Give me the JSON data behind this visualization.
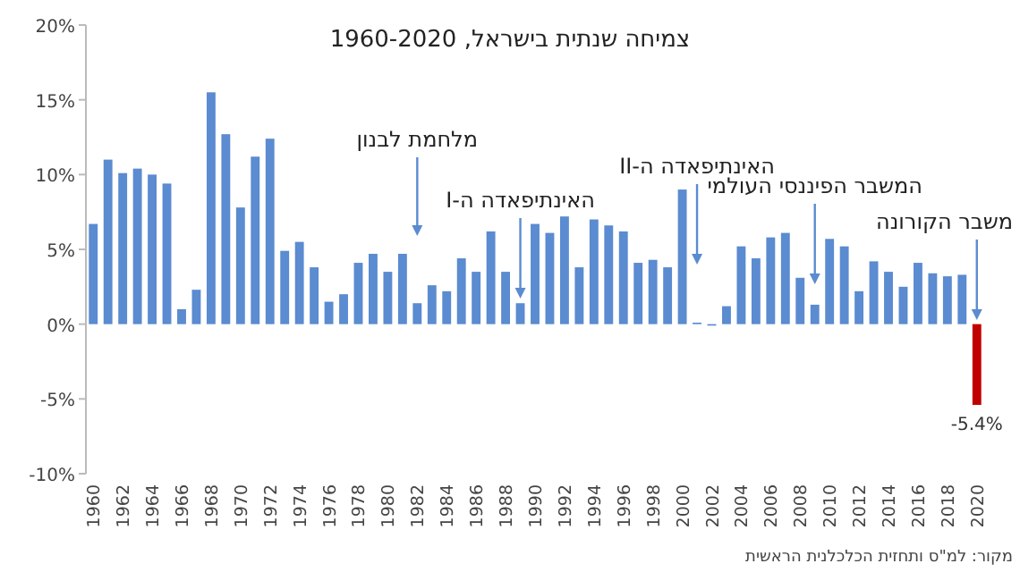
{
  "chart_data": {
    "type": "bar",
    "title": "צמיחה שנתית בישראל, 1960-2020",
    "categories": [
      "1960",
      null,
      "1962",
      null,
      "1964",
      null,
      "1966",
      null,
      "1968",
      null,
      "1970",
      null,
      "1972",
      null,
      "1974",
      null,
      "1976",
      null,
      "1978",
      null,
      "1980",
      null,
      "1982",
      null,
      "1984",
      null,
      "1986",
      null,
      "1988",
      null,
      "1990",
      null,
      "1992",
      null,
      "1994",
      null,
      "1996",
      null,
      "1998",
      null,
      "2000",
      null,
      "2002",
      null,
      "2004",
      null,
      "2006",
      null,
      "2008",
      null,
      "2010",
      null,
      "2012",
      null,
      "2014",
      null,
      "2016",
      null,
      "2018",
      null,
      "2020"
    ],
    "values": [
      6.7,
      11.0,
      10.1,
      10.4,
      10.0,
      9.4,
      1.0,
      2.3,
      15.5,
      12.7,
      7.8,
      11.2,
      12.4,
      4.9,
      5.5,
      3.8,
      1.5,
      2.0,
      4.1,
      4.7,
      3.5,
      4.7,
      1.4,
      2.6,
      2.2,
      4.4,
      3.5,
      6.2,
      3.5,
      1.4,
      6.7,
      6.1,
      7.2,
      3.8,
      7.0,
      6.6,
      6.2,
      4.1,
      4.3,
      3.8,
      9.0,
      0.1,
      -0.1,
      1.2,
      5.2,
      4.4,
      5.8,
      6.1,
      3.1,
      1.3,
      5.7,
      5.2,
      2.2,
      4.2,
      3.5,
      2.5,
      4.1,
      3.4,
      3.2,
      3.3,
      -5.4
    ],
    "colors": [
      "#5b8bd0",
      "#5b8bd0",
      "#5b8bd0",
      "#5b8bd0",
      "#5b8bd0",
      "#5b8bd0",
      "#5b8bd0",
      "#5b8bd0",
      "#5b8bd0",
      "#5b8bd0",
      "#5b8bd0",
      "#5b8bd0",
      "#5b8bd0",
      "#5b8bd0",
      "#5b8bd0",
      "#5b8bd0",
      "#5b8bd0",
      "#5b8bd0",
      "#5b8bd0",
      "#5b8bd0",
      "#5b8bd0",
      "#5b8bd0",
      "#5b8bd0",
      "#5b8bd0",
      "#5b8bd0",
      "#5b8bd0",
      "#5b8bd0",
      "#5b8bd0",
      "#5b8bd0",
      "#5b8bd0",
      "#5b8bd0",
      "#5b8bd0",
      "#5b8bd0",
      "#5b8bd0",
      "#5b8bd0",
      "#5b8bd0",
      "#5b8bd0",
      "#5b8bd0",
      "#5b8bd0",
      "#5b8bd0",
      "#5b8bd0",
      "#5b8bd0",
      "#5b8bd0",
      "#5b8bd0",
      "#5b8bd0",
      "#5b8bd0",
      "#5b8bd0",
      "#5b8bd0",
      "#5b8bd0",
      "#5b8bd0",
      "#5b8bd0",
      "#5b8bd0",
      "#5b8bd0",
      "#5b8bd0",
      "#5b8bd0",
      "#5b8bd0",
      "#5b8bd0",
      "#5b8bd0",
      "#5b8bd0",
      "#5b8bd0",
      "#c00000"
    ],
    "value_labels": [
      null,
      null,
      null,
      null,
      null,
      null,
      null,
      null,
      null,
      null,
      null,
      null,
      null,
      null,
      null,
      null,
      null,
      null,
      null,
      null,
      null,
      null,
      null,
      null,
      null,
      null,
      null,
      null,
      null,
      null,
      null,
      null,
      null,
      null,
      null,
      null,
      null,
      null,
      null,
      null,
      null,
      null,
      null,
      null,
      null,
      null,
      null,
      null,
      null,
      null,
      null,
      null,
      null,
      null,
      null,
      null,
      null,
      null,
      null,
      null,
      "-5.4%"
    ],
    "ylim": [
      -10,
      20
    ],
    "yticks": [
      {
        "value": -10,
        "label": "-10%"
      },
      {
        "value": -5,
        "label": "-5%"
      },
      {
        "value": 0,
        "label": "0%"
      },
      {
        "value": 5,
        "label": "5%"
      },
      {
        "value": 10,
        "label": "10%"
      },
      {
        "value": 15,
        "label": "15%"
      },
      {
        "value": 20,
        "label": "20%"
      }
    ],
    "annotations": [
      "מלחמת לבנון",
      "האינתיפאדה ה-I",
      "האינתיפאדה ה-II",
      "המשבר הפיננסי העולמי",
      "משבר הקורונה",
      "מקור: למ\"ס ותחזית הכלכלנית הראשית"
    ]
  }
}
